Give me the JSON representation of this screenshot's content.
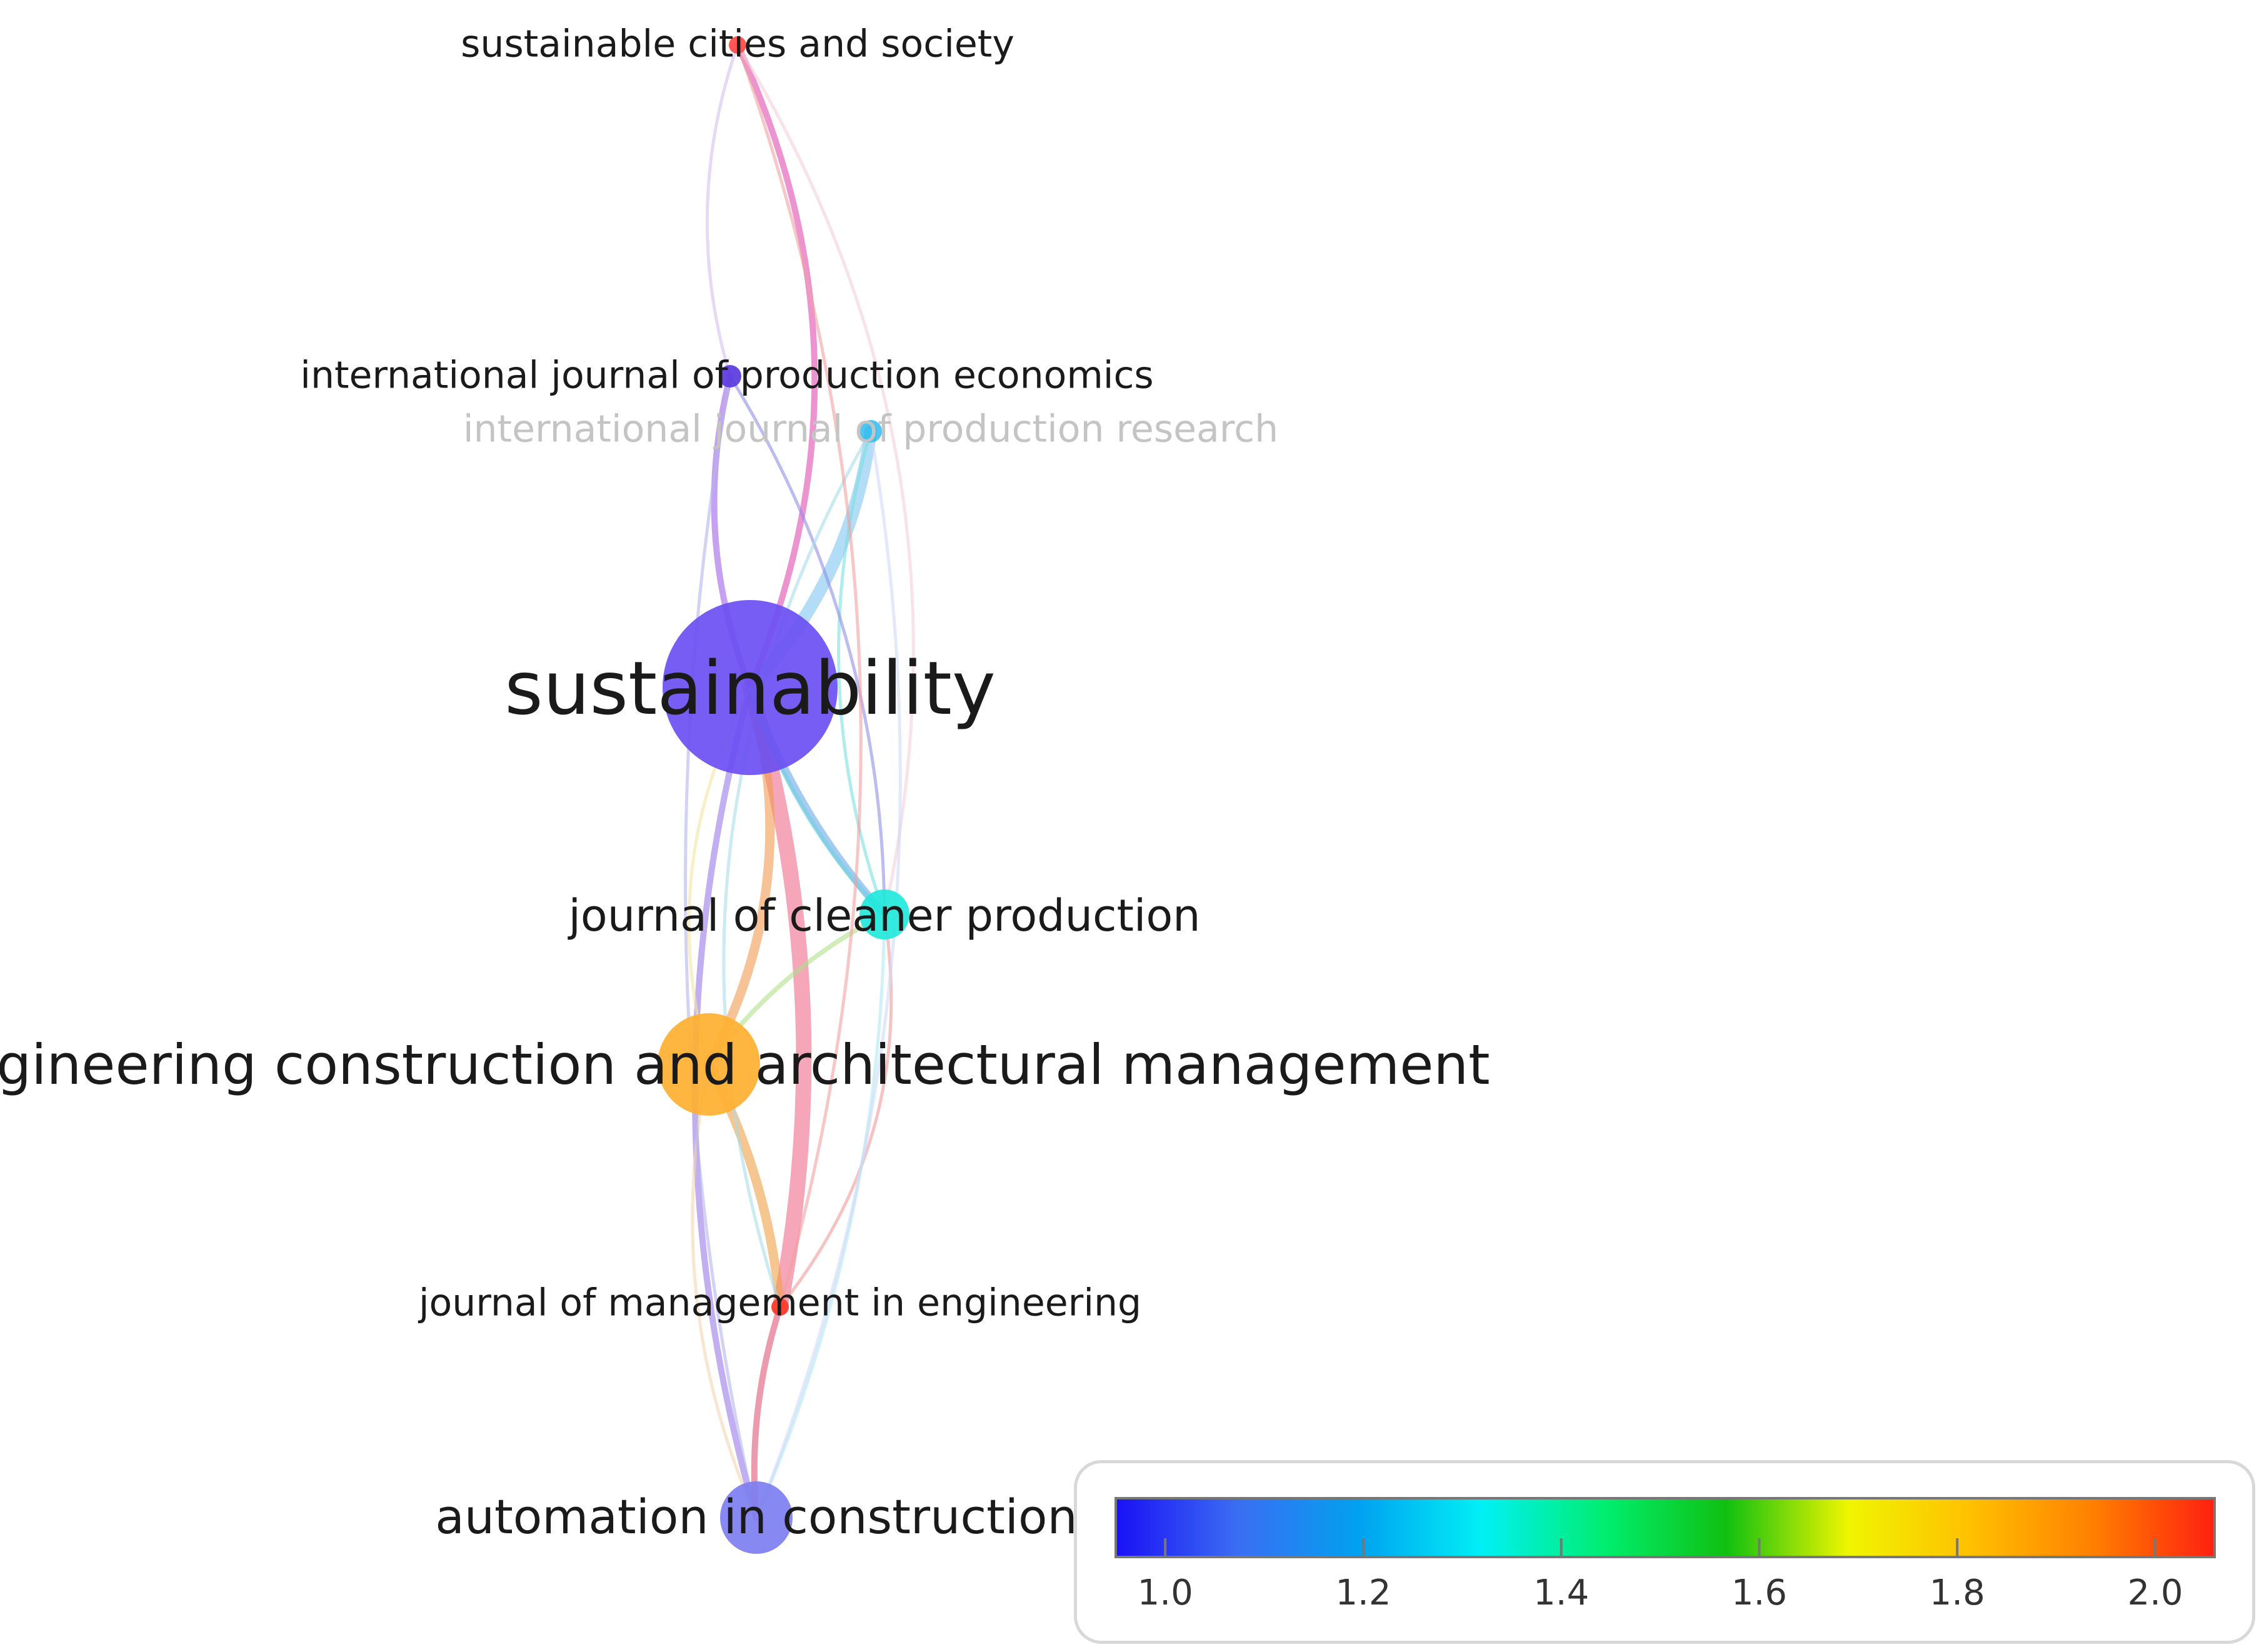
{
  "network": {
    "nodes": [
      {
        "id": "sus",
        "label": "sustainability",
        "value": 1.08,
        "faded": false
      },
      {
        "id": "sc",
        "label": "sustainable cities and society",
        "value": 2.0,
        "faded": false
      },
      {
        "id": "ijpe",
        "label": "international journal of production economics",
        "value": 1.05,
        "faded": false
      },
      {
        "id": "ijpr",
        "label": "international journal of production research",
        "value": 1.2,
        "faded": true
      },
      {
        "id": "jcp",
        "label": "journal of cleaner production",
        "value": 1.3,
        "faded": false
      },
      {
        "id": "ecam",
        "label": "engineering construction and architectural management",
        "value": 1.8,
        "faded": false
      },
      {
        "id": "jme",
        "label": "journal of management in engineering",
        "value": 2.0,
        "faded": false
      },
      {
        "id": "aic",
        "label": "automation in construction",
        "value": 1.1,
        "faded": false
      }
    ],
    "links": [
      {
        "source": "sus",
        "target": "jme",
        "color": "#f06a8a",
        "weight": 5
      },
      {
        "source": "sus",
        "target": "ijpr",
        "color": "#80c4f0",
        "weight": 4
      },
      {
        "source": "sus",
        "target": "ecam",
        "color": "#f29a50",
        "weight": 3
      },
      {
        "source": "sus",
        "target": "jcp",
        "color": "#6aa8e6",
        "weight": 2.5
      },
      {
        "source": "sus",
        "target": "sc",
        "color": "#e04cb0",
        "weight": 2
      },
      {
        "source": "sus",
        "target": "ijpe",
        "color": "#a060e8",
        "weight": 2
      },
      {
        "source": "sus",
        "target": "aic",
        "color": "#9a7ae8",
        "weight": 2
      },
      {
        "source": "ecam",
        "target": "jme",
        "color": "#f0a048",
        "weight": 3
      },
      {
        "source": "ecam",
        "target": "jcp",
        "color": "#b0e08a",
        "weight": 1.5
      },
      {
        "source": "ecam",
        "target": "aic",
        "color": "#f3d6b0",
        "weight": 1
      },
      {
        "source": "ecam",
        "target": "sus",
        "color": "#f2e6a0",
        "weight": 1
      },
      {
        "source": "jme",
        "target": "aic",
        "color": "#e0587a",
        "weight": 2
      },
      {
        "source": "jme",
        "target": "jcp",
        "color": "#f09a9a",
        "weight": 1
      },
      {
        "source": "jcp",
        "target": "ijpr",
        "color": "#7ae0e0",
        "weight": 1
      },
      {
        "source": "jcp",
        "target": "ijpe",
        "color": "#9090e8",
        "weight": 1
      },
      {
        "source": "jcp",
        "target": "aic",
        "color": "#b0e8f0",
        "weight": 1
      },
      {
        "source": "jcp",
        "target": "sus",
        "color": "#70d0e0",
        "weight": 1.5
      },
      {
        "source": "sc",
        "target": "ijpe",
        "color": "#d6c0f0",
        "weight": 1
      },
      {
        "source": "sc",
        "target": "jcp",
        "color": "#f4d0d8",
        "weight": 1
      },
      {
        "source": "ijpe",
        "target": "aic",
        "color": "#b4b4ec",
        "weight": 1
      },
      {
        "source": "ijpr",
        "target": "jme",
        "color": "#a8dcea",
        "weight": 1
      },
      {
        "source": "sc",
        "target": "jme",
        "color": "#f2a0a0",
        "weight": 1
      },
      {
        "source": "aic",
        "target": "ijpr",
        "color": "#d0d8f8",
        "weight": 1
      }
    ]
  },
  "legend": {
    "colors": [
      "#1a10f5",
      "#3a6ef2",
      "#00a2f0",
      "#00f0f5",
      "#00ee70",
      "#10c010",
      "#f0f500",
      "#ffc000",
      "#ff8000",
      "#ff2010"
    ],
    "ticks": [
      "1.0",
      "1.2",
      "1.4",
      "1.6",
      "1.8",
      "2.0"
    ]
  }
}
